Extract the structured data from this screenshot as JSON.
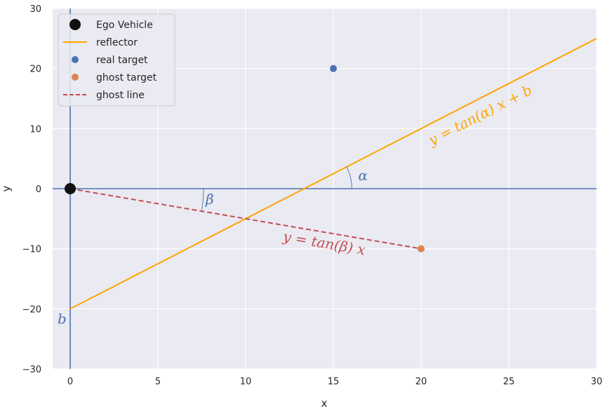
{
  "chart_data": {
    "type": "line",
    "xlabel": "x",
    "ylabel": "y",
    "xlim": [
      -1,
      30
    ],
    "ylim": [
      -30,
      30
    ],
    "x_ticks": [
      0,
      5,
      10,
      15,
      20,
      25,
      30
    ],
    "y_ticks": [
      -30,
      -20,
      -10,
      0,
      10,
      20,
      30
    ],
    "x_tick_labels": [
      "0",
      "5",
      "10",
      "15",
      "20",
      "25",
      "30"
    ],
    "y_tick_labels": [
      "−30",
      "−20",
      "−10",
      "0",
      "10",
      "20",
      "30"
    ],
    "grid": true,
    "legend_position": "top-left",
    "colors": {
      "background": "#eaeaf2",
      "grid": "#ffffff",
      "axes_lines": "#4c72b0",
      "ego": "#111111",
      "reflector": "#ffa500",
      "real_target": "#4c72b0",
      "ghost_target": "#dd8452",
      "ghost_line": "#c44e52"
    },
    "series": [
      {
        "name": "Ego Vehicle",
        "kind": "marker",
        "x": [
          0
        ],
        "y": [
          0
        ]
      },
      {
        "name": "reflector",
        "kind": "line",
        "x": [
          0,
          30
        ],
        "y": [
          -20,
          25
        ]
      },
      {
        "name": "real target",
        "kind": "scatter",
        "x": [
          15
        ],
        "y": [
          20
        ]
      },
      {
        "name": "ghost target",
        "kind": "scatter",
        "x": [
          20
        ],
        "y": [
          -10
        ]
      },
      {
        "name": "ghost line",
        "kind": "dashed-line",
        "x": [
          0,
          20
        ],
        "y": [
          0,
          -10
        ]
      }
    ],
    "reference_lines": {
      "horizontal_y": 0,
      "vertical_x": 0
    },
    "annotations": {
      "reflector_eq": "y = tan(α) x + b",
      "ghost_eq": "y = tan(β) x",
      "alpha": "α",
      "beta": "β",
      "b": "b"
    }
  }
}
